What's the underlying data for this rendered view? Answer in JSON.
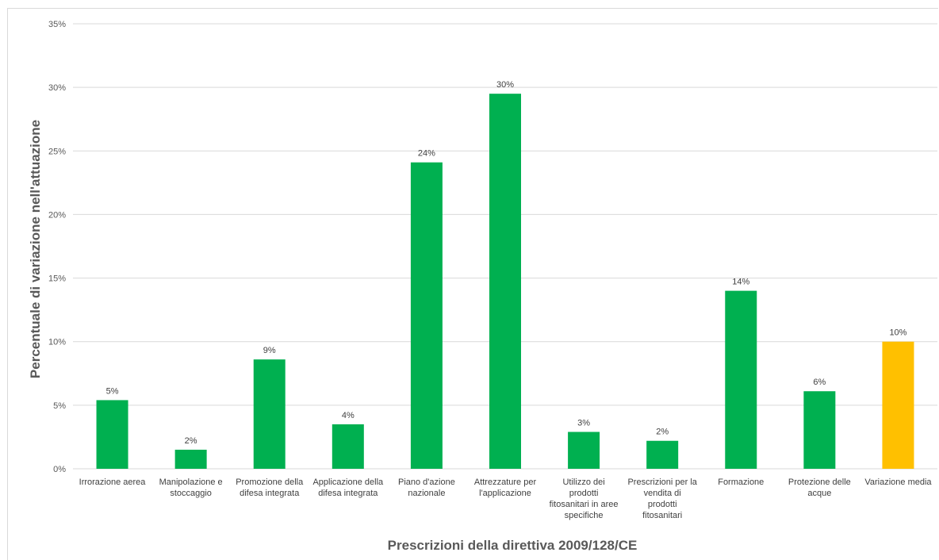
{
  "chart_data": {
    "type": "bar",
    "title": "",
    "xlabel": "Prescrizioni della direttiva 2009/128/CE",
    "ylabel": "Percentuale di variazione nell'attuazione",
    "ylim": [
      0,
      35
    ],
    "yticks": [
      "0%",
      "5%",
      "10%",
      "15%",
      "20%",
      "25%",
      "30%",
      "35%"
    ],
    "grid": true,
    "legend": "none",
    "categories": [
      "Irrorazione aerea",
      "Manipolazione e stoccaggio",
      "Promozione della difesa integrata",
      "Applicazione della difesa integrata",
      "Piano d'azione nazionale",
      "Attrezzature per l'applicazione",
      "Utilizzo dei prodotti fitosanitari in aree specifiche",
      "Prescrizioni per la vendita di prodotti fitosanitari",
      "Formazione",
      "Protezione delle acque",
      "Variazione media"
    ],
    "category_lines": [
      [
        "Irrorazione aerea"
      ],
      [
        "Manipolazione e",
        "stoccaggio"
      ],
      [
        "Promozione della",
        "difesa integrata"
      ],
      [
        "Applicazione della",
        "difesa integrata"
      ],
      [
        "Piano d'azione",
        "nazionale"
      ],
      [
        "Attrezzature per",
        "l'applicazione"
      ],
      [
        "Utilizzo dei",
        "prodotti",
        "fitosanitari in aree",
        "specifiche"
      ],
      [
        "Prescrizioni per la",
        "vendita di",
        "prodotti",
        "fitosanitari"
      ],
      [
        "Formazione"
      ],
      [
        "Protezione delle",
        "acque"
      ],
      [
        "Variazione media"
      ]
    ],
    "values": [
      5.4,
      1.5,
      8.6,
      3.5,
      24.1,
      29.5,
      2.9,
      2.2,
      14.0,
      6.1,
      10.0
    ],
    "data_labels": [
      "5%",
      "2%",
      "9%",
      "4%",
      "24%",
      "30%",
      "3%",
      "2%",
      "14%",
      "6%",
      "10%"
    ],
    "colors": [
      "#00b050",
      "#00b050",
      "#00b050",
      "#00b050",
      "#00b050",
      "#00b050",
      "#00b050",
      "#00b050",
      "#00b050",
      "#00b050",
      "#ffc000"
    ],
    "gridline_color": "#d9d9d9"
  }
}
